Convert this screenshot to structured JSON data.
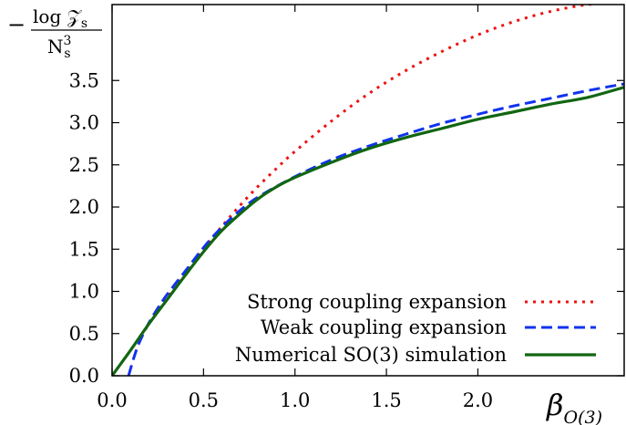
{
  "chart_data": {
    "type": "line",
    "xlabel": {
      "base": "β",
      "subscript": "O(3)"
    },
    "ylabel": {
      "prefix": "−",
      "numerator": "log 𝒵",
      "numerator_sub": "s",
      "denominator": "N",
      "denominator_sub": "s",
      "denominator_sup": "3"
    },
    "xlim": [
      0.0,
      2.8
    ],
    "ylim": [
      0.0,
      4.4
    ],
    "x_ticks": [
      0.0,
      0.5,
      1.0,
      1.5,
      2.0
    ],
    "x_tick_labels": [
      "0.0",
      "0.5",
      "1.0",
      "1.5",
      "2.0"
    ],
    "y_ticks": [
      0.0,
      0.5,
      1.0,
      1.5,
      2.0,
      2.5,
      3.0,
      3.5
    ],
    "y_tick_labels": [
      "0.0",
      "0.5",
      "1.0",
      "1.5",
      "2.0",
      "2.5",
      "3.0",
      "3.5"
    ],
    "grid": false,
    "legend_position": "bottom-right",
    "series": [
      {
        "name": "Strong coupling expansion",
        "color": "#ee1111",
        "style": "dotted",
        "x": [
          0.0,
          0.1,
          0.2,
          0.3,
          0.4,
          0.5,
          0.6,
          0.7,
          0.8,
          0.9,
          1.0,
          1.2,
          1.4,
          1.6,
          1.8,
          2.0,
          2.2,
          2.4,
          2.6,
          2.8
        ],
        "y": [
          0.0,
          0.3,
          0.61,
          0.92,
          1.21,
          1.5,
          1.77,
          2.02,
          2.25,
          2.46,
          2.66,
          3.02,
          3.34,
          3.61,
          3.84,
          4.04,
          4.2,
          4.32,
          4.4,
          4.43
        ]
      },
      {
        "name": "Weak coupling expansion",
        "color": "#1133ee",
        "style": "dashed",
        "x": [
          0.09,
          0.12,
          0.15,
          0.2,
          0.25,
          0.3,
          0.4,
          0.5,
          0.6,
          0.7,
          0.8,
          1.0,
          1.2,
          1.4,
          1.6,
          1.8,
          2.0,
          2.2,
          2.4,
          2.6,
          2.8
        ],
        "y": [
          0.0,
          0.22,
          0.4,
          0.62,
          0.8,
          0.96,
          1.24,
          1.52,
          1.76,
          1.96,
          2.12,
          2.36,
          2.56,
          2.72,
          2.86,
          2.99,
          3.1,
          3.2,
          3.29,
          3.38,
          3.46
        ]
      },
      {
        "name": "Numerical SO(3) simulation",
        "color": "#116611",
        "style": "solid",
        "x": [
          0.0,
          0.1,
          0.2,
          0.3,
          0.4,
          0.5,
          0.6,
          0.7,
          0.8,
          0.9,
          1.0,
          1.2,
          1.4,
          1.6,
          1.8,
          2.0,
          2.2,
          2.4,
          2.6,
          2.8
        ],
        "y": [
          0.0,
          0.3,
          0.61,
          0.9,
          1.19,
          1.47,
          1.72,
          1.92,
          2.1,
          2.24,
          2.35,
          2.53,
          2.69,
          2.82,
          2.93,
          3.04,
          3.13,
          3.22,
          3.3,
          3.42
        ]
      }
    ]
  }
}
